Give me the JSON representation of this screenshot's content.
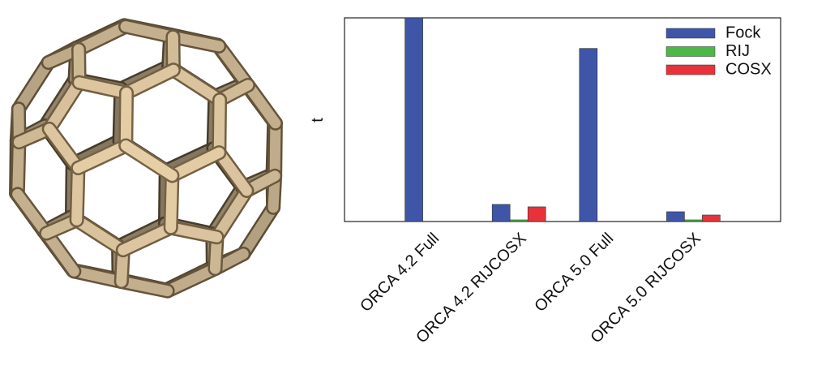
{
  "chart_data": {
    "type": "bar",
    "y_label": "t",
    "categories": [
      "ORCA 4.2 Full",
      "ORCA 4.2 RIJCOSX",
      "ORCA 5.0 Full",
      "ORCA 5.0 RIJCOSX"
    ],
    "series": [
      {
        "name": "Fock",
        "color": "#3f56a8",
        "values": [
          100,
          8.4,
          85,
          4.8
        ]
      },
      {
        "name": "RIJ",
        "color": "#4db848",
        "values": [
          0,
          0.8,
          0,
          0.8
        ]
      },
      {
        "name": "COSX",
        "color": "#e8323a",
        "values": [
          0,
          7.2,
          0,
          3.2
        ]
      }
    ],
    "ylim": [
      0,
      100
    ],
    "legend": "upper right"
  }
}
